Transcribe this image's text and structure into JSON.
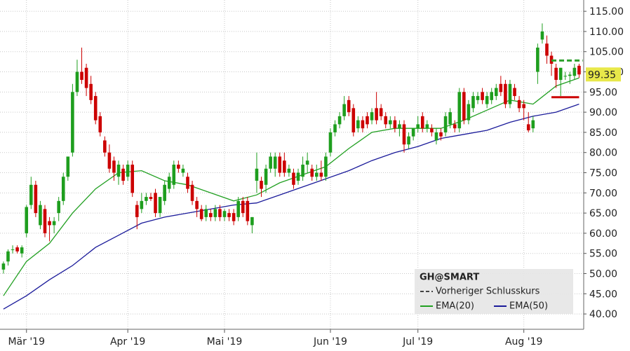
{
  "chart_data": {
    "type": "candlestick",
    "ylim": [
      36.2,
      117.8
    ],
    "yticks": [
      {
        "value": 40,
        "label": "40.00"
      },
      {
        "value": 45,
        "label": "45.00"
      },
      {
        "value": 50,
        "label": "50.00"
      },
      {
        "value": 55,
        "label": "55.00"
      },
      {
        "value": 60,
        "label": "60.00"
      },
      {
        "value": 65,
        "label": "65.00"
      },
      {
        "value": 70,
        "label": "70.00"
      },
      {
        "value": 75,
        "label": "75.00"
      },
      {
        "value": 80,
        "label": "80.00"
      },
      {
        "value": 85,
        "label": "85.00"
      },
      {
        "value": 90,
        "label": "90.00"
      },
      {
        "value": 95,
        "label": "95.00"
      },
      {
        "value": 100,
        "label": "100.00"
      },
      {
        "value": 105,
        "label": "105.00"
      },
      {
        "value": 110,
        "label": "110.00"
      },
      {
        "value": 115,
        "label": "115.00"
      }
    ],
    "xlim": [
      -0.75,
      126
    ],
    "xticks": [
      {
        "value": 5,
        "label": "Mär '19"
      },
      {
        "value": 27,
        "label": "Apr '19"
      },
      {
        "value": 48,
        "label": "Mai '19"
      },
      {
        "value": 71,
        "label": "Jun '19"
      },
      {
        "value": 90,
        "label": "Jul '19"
      },
      {
        "value": 113,
        "label": "Aug '19"
      }
    ],
    "grid": true,
    "up_color": "#1e9e1e",
    "down_color": "#cc0000",
    "ohlc": [
      [
        51,
        53,
        50,
        52.5
      ],
      [
        53,
        56,
        52,
        55.5
      ],
      [
        56,
        57,
        55,
        56
      ],
      [
        56.5,
        57,
        55,
        55.5
      ],
      [
        55,
        57,
        54,
        56.5
      ],
      [
        60,
        67,
        59,
        66.5
      ],
      [
        67,
        74,
        66,
        72
      ],
      [
        72,
        73,
        64,
        65
      ],
      [
        62,
        68,
        61,
        67
      ],
      [
        66,
        67,
        59,
        60
      ],
      [
        63,
        64,
        58,
        62
      ],
      [
        62,
        64,
        60,
        63
      ],
      [
        65,
        69,
        63,
        68
      ],
      [
        68,
        75,
        67,
        74
      ],
      [
        74,
        79,
        73,
        79
      ],
      [
        80,
        97,
        79,
        95
      ],
      [
        95,
        103,
        94,
        100
      ],
      [
        100,
        106,
        97,
        98
      ],
      [
        101,
        102,
        94,
        96
      ],
      [
        97,
        99,
        92,
        93
      ],
      [
        94,
        95,
        87,
        88
      ],
      [
        89,
        90,
        84,
        85
      ],
      [
        83,
        84,
        79,
        80
      ],
      [
        80,
        82,
        75,
        76
      ],
      [
        78,
        79,
        73,
        75
      ],
      [
        74,
        78,
        72,
        77
      ],
      [
        76,
        77,
        72,
        73
      ],
      [
        74,
        78,
        73,
        77
      ],
      [
        77,
        78,
        69,
        70
      ],
      [
        67,
        68,
        61,
        64
      ],
      [
        66,
        70,
        65,
        68
      ],
      [
        68,
        70,
        67,
        69
      ],
      [
        69,
        70,
        68,
        68.5
      ],
      [
        70,
        71,
        64,
        65
      ],
      [
        65,
        69,
        64,
        69
      ],
      [
        68,
        73,
        67,
        72
      ],
      [
        71,
        75,
        70,
        74
      ],
      [
        72,
        78,
        71,
        77
      ],
      [
        77,
        78,
        75,
        76
      ],
      [
        75,
        77,
        74,
        76
      ],
      [
        74,
        75,
        70,
        71
      ],
      [
        72,
        73,
        67,
        68
      ],
      [
        68,
        69,
        64,
        66
      ],
      [
        66,
        67,
        63,
        63.5
      ],
      [
        64,
        67,
        63,
        66
      ],
      [
        65,
        66,
        63,
        64
      ],
      [
        64,
        67,
        63,
        66
      ],
      [
        66,
        67,
        63,
        64
      ],
      [
        64,
        66,
        63,
        65.5
      ],
      [
        65,
        66,
        63,
        64
      ],
      [
        65,
        66,
        62,
        63
      ],
      [
        64,
        69,
        63,
        68
      ],
      [
        68,
        69,
        64,
        65
      ],
      [
        68,
        69,
        62,
        63
      ],
      [
        62,
        64,
        60,
        64
      ],
      [
        73,
        80,
        70,
        76
      ],
      [
        73,
        74,
        69,
        71
      ],
      [
        72,
        77,
        70,
        76
      ],
      [
        76,
        80,
        75,
        79
      ],
      [
        76,
        80,
        74,
        79
      ],
      [
        79,
        80,
        74,
        75
      ],
      [
        78,
        80,
        74,
        75
      ],
      [
        75,
        77,
        74,
        76
      ],
      [
        75,
        76,
        71,
        72
      ],
      [
        73,
        76,
        72,
        75
      ],
      [
        74,
        79,
        73,
        77
      ],
      [
        77,
        80,
        75,
        78
      ],
      [
        76,
        77,
        73,
        74
      ],
      [
        74,
        77,
        73,
        75
      ],
      [
        75,
        78,
        73,
        74
      ],
      [
        74,
        80,
        73,
        79
      ],
      [
        80,
        86,
        79,
        85
      ],
      [
        85,
        88,
        84,
        87
      ],
      [
        87,
        90,
        86,
        89
      ],
      [
        89,
        94,
        88,
        92
      ],
      [
        93,
        94,
        89,
        90
      ],
      [
        91,
        92,
        84,
        85
      ],
      [
        86,
        89,
        85,
        88
      ],
      [
        88,
        89,
        85,
        86
      ],
      [
        89,
        90,
        86,
        87
      ],
      [
        88,
        91,
        87,
        90
      ],
      [
        91,
        95,
        87,
        88
      ],
      [
        91,
        92,
        88,
        89
      ],
      [
        89,
        90,
        86,
        87
      ],
      [
        87,
        89,
        86,
        88
      ],
      [
        88,
        89,
        85,
        86
      ],
      [
        86,
        88,
        84,
        87
      ],
      [
        87,
        88,
        80,
        82
      ],
      [
        82,
        85,
        81,
        84
      ],
      [
        84,
        86,
        83,
        86
      ],
      [
        86,
        89,
        85,
        87
      ],
      [
        89,
        90,
        85,
        86
      ],
      [
        86,
        88,
        85,
        87
      ],
      [
        86,
        87,
        84,
        85
      ],
      [
        83,
        86,
        82,
        85
      ],
      [
        85,
        86,
        83,
        84
      ],
      [
        85,
        90,
        84,
        89
      ],
      [
        87,
        91,
        86,
        90
      ],
      [
        87,
        88,
        85,
        86
      ],
      [
        86,
        96,
        85,
        95
      ],
      [
        95,
        96,
        87,
        88
      ],
      [
        88,
        93,
        87,
        92
      ],
      [
        91,
        95,
        90,
        94
      ],
      [
        93,
        95,
        92,
        94
      ],
      [
        95,
        96,
        92,
        93
      ],
      [
        92,
        95,
        91,
        94
      ],
      [
        93,
        96,
        92,
        95
      ],
      [
        94,
        97,
        93,
        96
      ],
      [
        97,
        99,
        94,
        95
      ],
      [
        97,
        98,
        91,
        92
      ],
      [
        92,
        98,
        91,
        97
      ],
      [
        96,
        97,
        93,
        94
      ],
      [
        93,
        94,
        90,
        91
      ],
      [
        92,
        93,
        88,
        91
      ],
      [
        87,
        90,
        85,
        85.5
      ],
      [
        86,
        89,
        85,
        88
      ],
      [
        100,
        107,
        97,
        106
      ],
      [
        108,
        112,
        107,
        110
      ],
      [
        107,
        109,
        102,
        104
      ],
      [
        104,
        105,
        99,
        102
      ],
      [
        101,
        102,
        96,
        98
      ],
      [
        98,
        101,
        94,
        101
      ],
      [
        99,
        100,
        98,
        99
      ],
      [
        99,
        100,
        97,
        99.3
      ],
      [
        99,
        102,
        98,
        101
      ],
      [
        101.5,
        102,
        98.5,
        99.35
      ]
    ],
    "series": [
      {
        "name": "EMA(20)",
        "color": "#22a022",
        "x": [
          0,
          5,
          10,
          15,
          20,
          25,
          30,
          35,
          40,
          45,
          50,
          55,
          60,
          65,
          70,
          75,
          80,
          85,
          90,
          95,
          100,
          105,
          110,
          115,
          120,
          125
        ],
        "values": [
          44.5,
          53,
          57.5,
          65,
          71,
          75,
          75.5,
          73,
          72,
          70,
          68,
          69.5,
          72.5,
          74.5,
          76.5,
          81,
          85,
          86,
          86,
          86,
          88,
          90.5,
          93,
          92,
          96.5,
          98.5
        ]
      },
      {
        "name": "EMA(50)",
        "color": "#1a1a9a",
        "x": [
          0,
          5,
          10,
          15,
          20,
          25,
          30,
          35,
          40,
          45,
          50,
          55,
          60,
          65,
          70,
          75,
          80,
          85,
          90,
          95,
          100,
          105,
          110,
          115,
          120,
          125
        ],
        "values": [
          41.2,
          44.5,
          48.5,
          52,
          56.5,
          59.5,
          62.5,
          64,
          65,
          66,
          67,
          67.5,
          69.5,
          71.5,
          73.5,
          75.5,
          78,
          80,
          81.5,
          83.5,
          84.5,
          85.5,
          87.5,
          89,
          90,
          92
        ]
      }
    ],
    "previous_close": {
      "name": "Vorheriger Schlusskurs",
      "value": 102.8,
      "color": "#2ca02c",
      "x": [
        119,
        125.8
      ]
    },
    "level": {
      "value": 93.7,
      "color": "#cc0000",
      "x": [
        119,
        125
      ]
    },
    "last_price": 99.35,
    "legend_title": "GH@SMART"
  }
}
